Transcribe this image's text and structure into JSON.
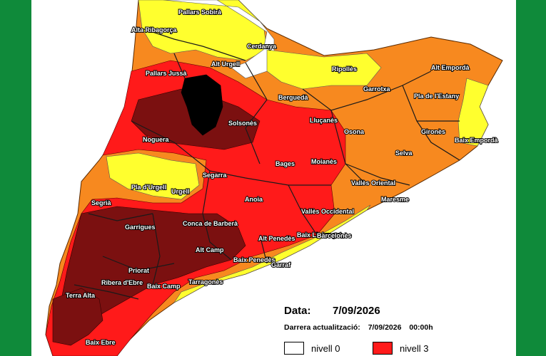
{
  "colors": {
    "frame": "#0f8a3a",
    "nivell_0": "#ffffff",
    "nivell_1": "#ffff2e",
    "nivell_2": "#f7891f",
    "nivell_3": "#ff1a1a",
    "nivell_4": "#7b1010",
    "nivell_5": "#000000"
  },
  "map": {
    "regions": [
      {
        "name": "Pallars Sobirà",
        "level": 1
      },
      {
        "name": "Alta Ribagorça",
        "level": 1
      },
      {
        "name": "Cerdanya",
        "level": 0
      },
      {
        "name": "Alt Urgell",
        "level": 2
      },
      {
        "name": "Pallars Jussà",
        "level": 3
      },
      {
        "name": "Ripollès",
        "level": 1
      },
      {
        "name": "Alt Empordà",
        "level": 2
      },
      {
        "name": "Garrotxa",
        "level": 2
      },
      {
        "name": "Pla de l'Estany",
        "level": 2
      },
      {
        "name": "Berguedà",
        "level": 2
      },
      {
        "name": "Lluçanès",
        "level": 3
      },
      {
        "name": "Solsonès",
        "level": 3
      },
      {
        "name": "Noguera",
        "level": 4
      },
      {
        "name": "Osona",
        "level": 2
      },
      {
        "name": "Gironès",
        "level": 2
      },
      {
        "name": "Baix Empordà",
        "level": 1
      },
      {
        "name": "Selva",
        "level": 2
      },
      {
        "name": "Bages",
        "level": 3
      },
      {
        "name": "Moianès",
        "level": 3
      },
      {
        "name": "Segarra",
        "level": 2
      },
      {
        "name": "Pla d'Urgell",
        "level": 1
      },
      {
        "name": "Urgell",
        "level": 1
      },
      {
        "name": "Vallès Oriental",
        "level": 2
      },
      {
        "name": "Segrià",
        "level": 2
      },
      {
        "name": "Anoia",
        "level": 3
      },
      {
        "name": "Maresme",
        "level": 2
      },
      {
        "name": "Vallès Occidental",
        "level": 3
      },
      {
        "name": "Garrigues",
        "level": 4
      },
      {
        "name": "Conca de Barberà",
        "level": 4
      },
      {
        "name": "Baix Llobregat",
        "level": 3
      },
      {
        "name": "Barcelonès",
        "level": 1
      },
      {
        "name": "Alt Camp",
        "level": 3
      },
      {
        "name": "Alt Penedès",
        "level": 3
      },
      {
        "name": "Priorat",
        "level": 4
      },
      {
        "name": "Baix Penedès",
        "level": 2
      },
      {
        "name": "Garraf",
        "level": 3
      },
      {
        "name": "Ribera d'Ebre",
        "level": 4
      },
      {
        "name": "Baix Camp",
        "level": 3
      },
      {
        "name": "Tarragonès",
        "level": 1
      },
      {
        "name": "Terra Alta",
        "level": 4
      },
      {
        "name": "Baix Ebre",
        "level": 4
      }
    ]
  },
  "legend": {
    "date_label": "Data:",
    "date_value": "7/09/2026",
    "update_label": "Darrera actualització:",
    "update_date": "7/09/2026",
    "update_time": "00:00h",
    "items": [
      {
        "label": "nivell 0",
        "level": 0
      },
      {
        "label": "nivell 3",
        "level": 3
      }
    ]
  }
}
